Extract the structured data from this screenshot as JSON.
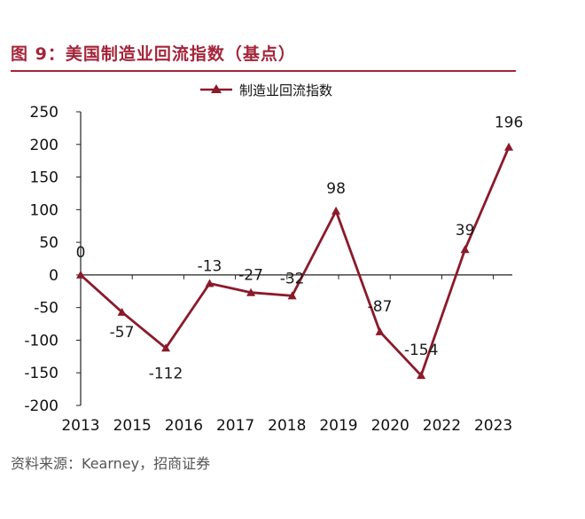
{
  "figure": {
    "title": "图 9：美国制造业回流指数（基点）",
    "source": "资料来源：Kearney，招商证券"
  },
  "chart_data": {
    "type": "line",
    "categories": [
      "2013",
      "2015",
      "2016",
      "2017",
      "2018",
      "2019",
      "2020",
      "2022",
      "2023"
    ],
    "x_positions": [
      0,
      1,
      2,
      3,
      4,
      5,
      6,
      7,
      8
    ],
    "series": [
      {
        "name": "制造业回流指数",
        "labels": [
          "0",
          "-57",
          "-112",
          "-13",
          "-27",
          "-32",
          "98",
          "-87",
          "-154",
          "39",
          "196"
        ],
        "points": [
          {
            "x": 0.0,
            "y": 0
          },
          {
            "x": 0.8,
            "y": -57
          },
          {
            "x": 1.65,
            "y": -112
          },
          {
            "x": 2.5,
            "y": -13
          },
          {
            "x": 3.3,
            "y": -27
          },
          {
            "x": 4.1,
            "y": -32
          },
          {
            "x": 4.95,
            "y": 98
          },
          {
            "x": 5.8,
            "y": -87
          },
          {
            "x": 6.6,
            "y": -154
          },
          {
            "x": 7.45,
            "y": 39
          },
          {
            "x": 8.3,
            "y": 196
          }
        ],
        "color": "#8b1a2b"
      }
    ],
    "y_ticks": [
      "250",
      "200",
      "150",
      "100",
      "50",
      "0",
      "-50",
      "-100",
      "-150",
      "-200"
    ],
    "ylim": [
      -200,
      250
    ],
    "grid": false,
    "legend": "top-center",
    "xlabel": "",
    "ylabel": ""
  }
}
